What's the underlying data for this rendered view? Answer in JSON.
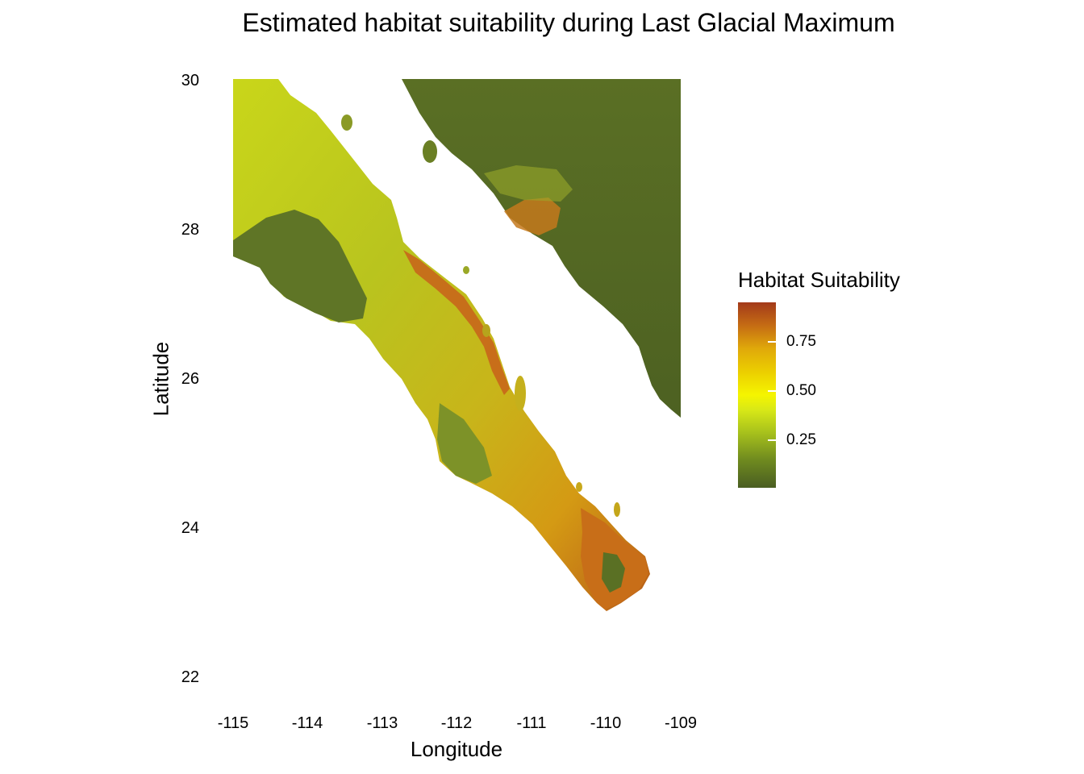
{
  "title": "Estimated habitat suitability during Last Glacial Maximum",
  "axes": {
    "xlabel": "Longitude",
    "ylabel": "Latitude",
    "xticks": [
      "-115",
      "-114",
      "-113",
      "-112",
      "-111",
      "-110",
      "-109"
    ],
    "yticks": [
      "30",
      "28",
      "26",
      "24",
      "22"
    ]
  },
  "legend": {
    "title": "Habitat Suitability",
    "ticks": [
      "0.75",
      "0.50",
      "0.25"
    ]
  },
  "colors": {
    "low": "#4a5e22",
    "mid": "#f5f500",
    "high": "#a33a1a"
  },
  "chart_data": {
    "type": "heatmap",
    "title": "Estimated habitat suitability during Last Glacial Maximum",
    "xlabel": "Longitude",
    "ylabel": "Latitude",
    "xlim": [
      -115,
      -109
    ],
    "ylim": [
      22,
      30
    ],
    "legend_title": "Habitat Suitability",
    "legend_placement": "right",
    "color_range": [
      0,
      0.95
    ],
    "grid": false
  }
}
